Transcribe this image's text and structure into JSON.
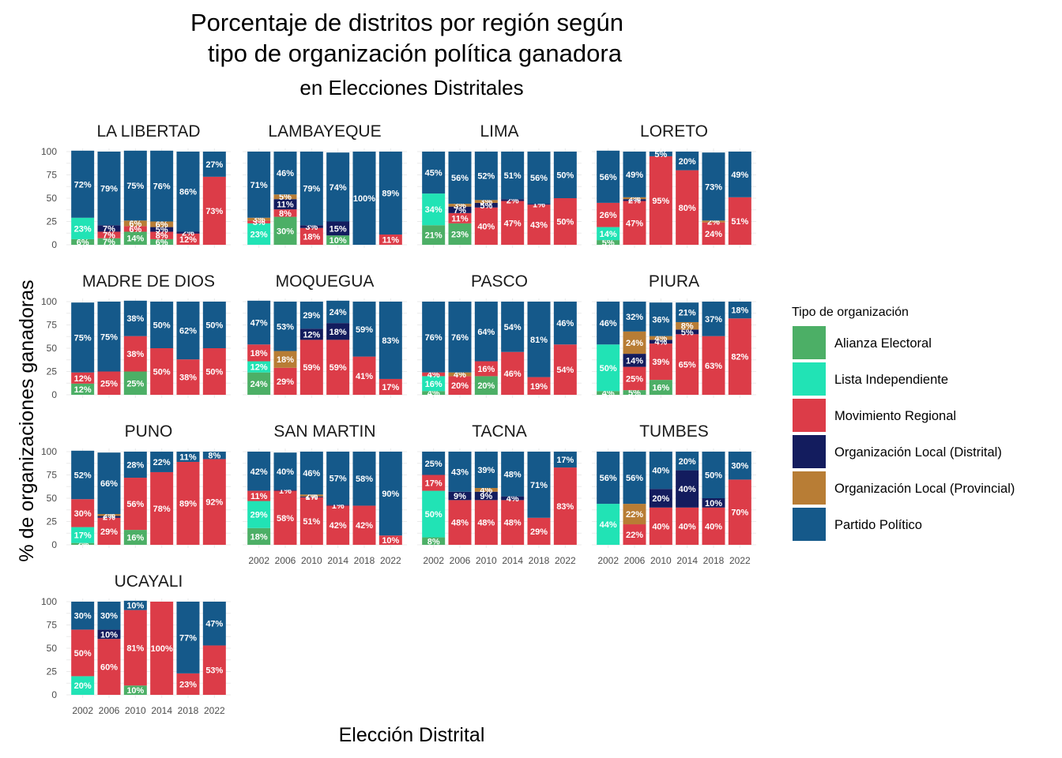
{
  "chart_data": {
    "type": "bar",
    "stacked": true,
    "faceted": true,
    "title_line1": "Porcentaje de distritos por región según",
    "title_line2": "tipo de organización política ganadora",
    "subtitle": "en Elecciones Distritales",
    "xlabel": "Elección Distrital",
    "ylabel": "% de organizaciones ganadoras",
    "ylim": [
      0,
      100
    ],
    "y_ticks": [
      "0",
      "25",
      "50",
      "75",
      "100"
    ],
    "categories": [
      "2002",
      "2006",
      "2010",
      "2014",
      "2018",
      "2022"
    ],
    "stack_order": [
      "Alianza Electoral",
      "Lista Independiente",
      "Movimiento Regional",
      "Organización Local (Distrital)",
      "Organización Local (Provincial)",
      "Partido Político"
    ],
    "legend": {
      "title": "Tipo de organización",
      "position": "right",
      "items": [
        {
          "name": "Alianza Electoral",
          "color": "#4caf66"
        },
        {
          "name": "Lista Independiente",
          "color": "#21e3b5"
        },
        {
          "name": "Movimiento Regional",
          "color": "#dc3c48"
        },
        {
          "name": "Organización Local (Distrital)",
          "color": "#131c5e"
        },
        {
          "name": "Organización Local (Provincial)",
          "color": "#b87d35"
        },
        {
          "name": "Partido Político",
          "color": "#15598a"
        }
      ]
    },
    "label_text_color": "#ffffff",
    "panels": [
      {
        "region": "LA LIBERTAD",
        "bars": [
          [
            6,
            23,
            0,
            0,
            0,
            72
          ],
          [
            7,
            0,
            7,
            7,
            0,
            79
          ],
          [
            14,
            0,
            6,
            0,
            6,
            75
          ],
          [
            6,
            0,
            8,
            5,
            6,
            76
          ],
          [
            0,
            0,
            12,
            2,
            0,
            86
          ],
          [
            0,
            0,
            73,
            0,
            0,
            27
          ]
        ]
      },
      {
        "region": "LAMBAYEQUE",
        "bars": [
          [
            0,
            23,
            3,
            0,
            3,
            71
          ],
          [
            30,
            0,
            8,
            11,
            5,
            46
          ],
          [
            0,
            0,
            18,
            3,
            0,
            79
          ],
          [
            10,
            0,
            0,
            15,
            0,
            74
          ],
          [
            0,
            0,
            0,
            0,
            0,
            100
          ],
          [
            0,
            0,
            11,
            0,
            0,
            89
          ]
        ]
      },
      {
        "region": "LIMA",
        "bars": [
          [
            21,
            34,
            0,
            0,
            0,
            45
          ],
          [
            23,
            0,
            11,
            7,
            3,
            56
          ],
          [
            0,
            0,
            40,
            5,
            3,
            52
          ],
          [
            0,
            0,
            47,
            2,
            0,
            51
          ],
          [
            0,
            0,
            43,
            1,
            0,
            56
          ],
          [
            0,
            0,
            50,
            0,
            0,
            50
          ]
        ]
      },
      {
        "region": "LORETO",
        "bars": [
          [
            5,
            14,
            26,
            0,
            0,
            56
          ],
          [
            0,
            0,
            47,
            2,
            2,
            49
          ],
          [
            0,
            0,
            95,
            0,
            0,
            5
          ],
          [
            0,
            0,
            80,
            0,
            0,
            20
          ],
          [
            0,
            0,
            24,
            0,
            2,
            73
          ],
          [
            0,
            0,
            51,
            0,
            0,
            49
          ]
        ]
      },
      {
        "region": "MADRE DE DIOS",
        "bars": [
          [
            12,
            0,
            12,
            0,
            0,
            75
          ],
          [
            0,
            0,
            25,
            0,
            0,
            75
          ],
          [
            25,
            0,
            38,
            0,
            0,
            38
          ],
          [
            0,
            0,
            50,
            0,
            0,
            50
          ],
          [
            0,
            0,
            38,
            0,
            0,
            62
          ],
          [
            0,
            0,
            50,
            0,
            0,
            50
          ]
        ]
      },
      {
        "region": "MOQUEGUA",
        "bars": [
          [
            24,
            12,
            18,
            0,
            0,
            47
          ],
          [
            0,
            0,
            29,
            0,
            18,
            53
          ],
          [
            0,
            0,
            59,
            12,
            0,
            29
          ],
          [
            0,
            0,
            59,
            18,
            0,
            24
          ],
          [
            0,
            0,
            41,
            0,
            0,
            59
          ],
          [
            0,
            0,
            17,
            0,
            0,
            83
          ]
        ]
      },
      {
        "region": "PASCO",
        "bars": [
          [
            4,
            16,
            4,
            0,
            0,
            76
          ],
          [
            0,
            0,
            20,
            0,
            4,
            76
          ],
          [
            20,
            0,
            16,
            0,
            0,
            64
          ],
          [
            0,
            0,
            46,
            0,
            0,
            54
          ],
          [
            0,
            0,
            19,
            0,
            0,
            81
          ],
          [
            0,
            0,
            54,
            0,
            0,
            46
          ]
        ]
      },
      {
        "region": "PIURA",
        "bars": [
          [
            4,
            50,
            0,
            0,
            0,
            46
          ],
          [
            5,
            0,
            25,
            14,
            24,
            32
          ],
          [
            16,
            0,
            39,
            4,
            4,
            36
          ],
          [
            0,
            0,
            65,
            5,
            8,
            21
          ],
          [
            0,
            0,
            63,
            0,
            0,
            37
          ],
          [
            0,
            0,
            82,
            0,
            0,
            18
          ]
        ]
      },
      {
        "region": "PUNO",
        "bars": [
          [
            2,
            17,
            30,
            0,
            0,
            52
          ],
          [
            0,
            0,
            29,
            2,
            2,
            66
          ],
          [
            16,
            0,
            56,
            0,
            0,
            28
          ],
          [
            0,
            0,
            78,
            0,
            0,
            22
          ],
          [
            0,
            0,
            89,
            0,
            0,
            11
          ],
          [
            0,
            0,
            92,
            0,
            0,
            8
          ]
        ]
      },
      {
        "region": "SAN MARTIN",
        "bars": [
          [
            18,
            29,
            11,
            0,
            0,
            42
          ],
          [
            0,
            0,
            58,
            1,
            0,
            40
          ],
          [
            0,
            0,
            51,
            1,
            2,
            46
          ],
          [
            0,
            0,
            42,
            1,
            0,
            57
          ],
          [
            0,
            0,
            42,
            0,
            0,
            58
          ],
          [
            0,
            0,
            10,
            0,
            0,
            90
          ]
        ]
      },
      {
        "region": "TACNA",
        "bars": [
          [
            8,
            50,
            17,
            0,
            0,
            25
          ],
          [
            0,
            0,
            48,
            9,
            0,
            43
          ],
          [
            0,
            0,
            48,
            9,
            4,
            39
          ],
          [
            0,
            0,
            48,
            4,
            0,
            48
          ],
          [
            0,
            0,
            29,
            0,
            0,
            71
          ],
          [
            0,
            0,
            83,
            0,
            0,
            17
          ]
        ]
      },
      {
        "region": "TUMBES",
        "bars": [
          [
            0,
            44,
            0,
            0,
            0,
            56
          ],
          [
            0,
            0,
            22,
            0,
            22,
            56
          ],
          [
            0,
            0,
            40,
            20,
            0,
            40
          ],
          [
            0,
            0,
            40,
            40,
            0,
            20
          ],
          [
            0,
            0,
            40,
            10,
            0,
            50
          ],
          [
            0,
            0,
            70,
            0,
            0,
            30
          ]
        ]
      },
      {
        "region": "UCAYALI",
        "bars": [
          [
            0,
            20,
            50,
            0,
            0,
            30
          ],
          [
            0,
            0,
            60,
            10,
            0,
            30
          ],
          [
            10,
            0,
            81,
            0,
            0,
            10
          ],
          [
            0,
            0,
            100,
            0,
            0,
            0
          ],
          [
            0,
            0,
            23,
            0,
            0,
            77
          ],
          [
            0,
            0,
            53,
            0,
            0,
            47
          ]
        ]
      }
    ]
  }
}
